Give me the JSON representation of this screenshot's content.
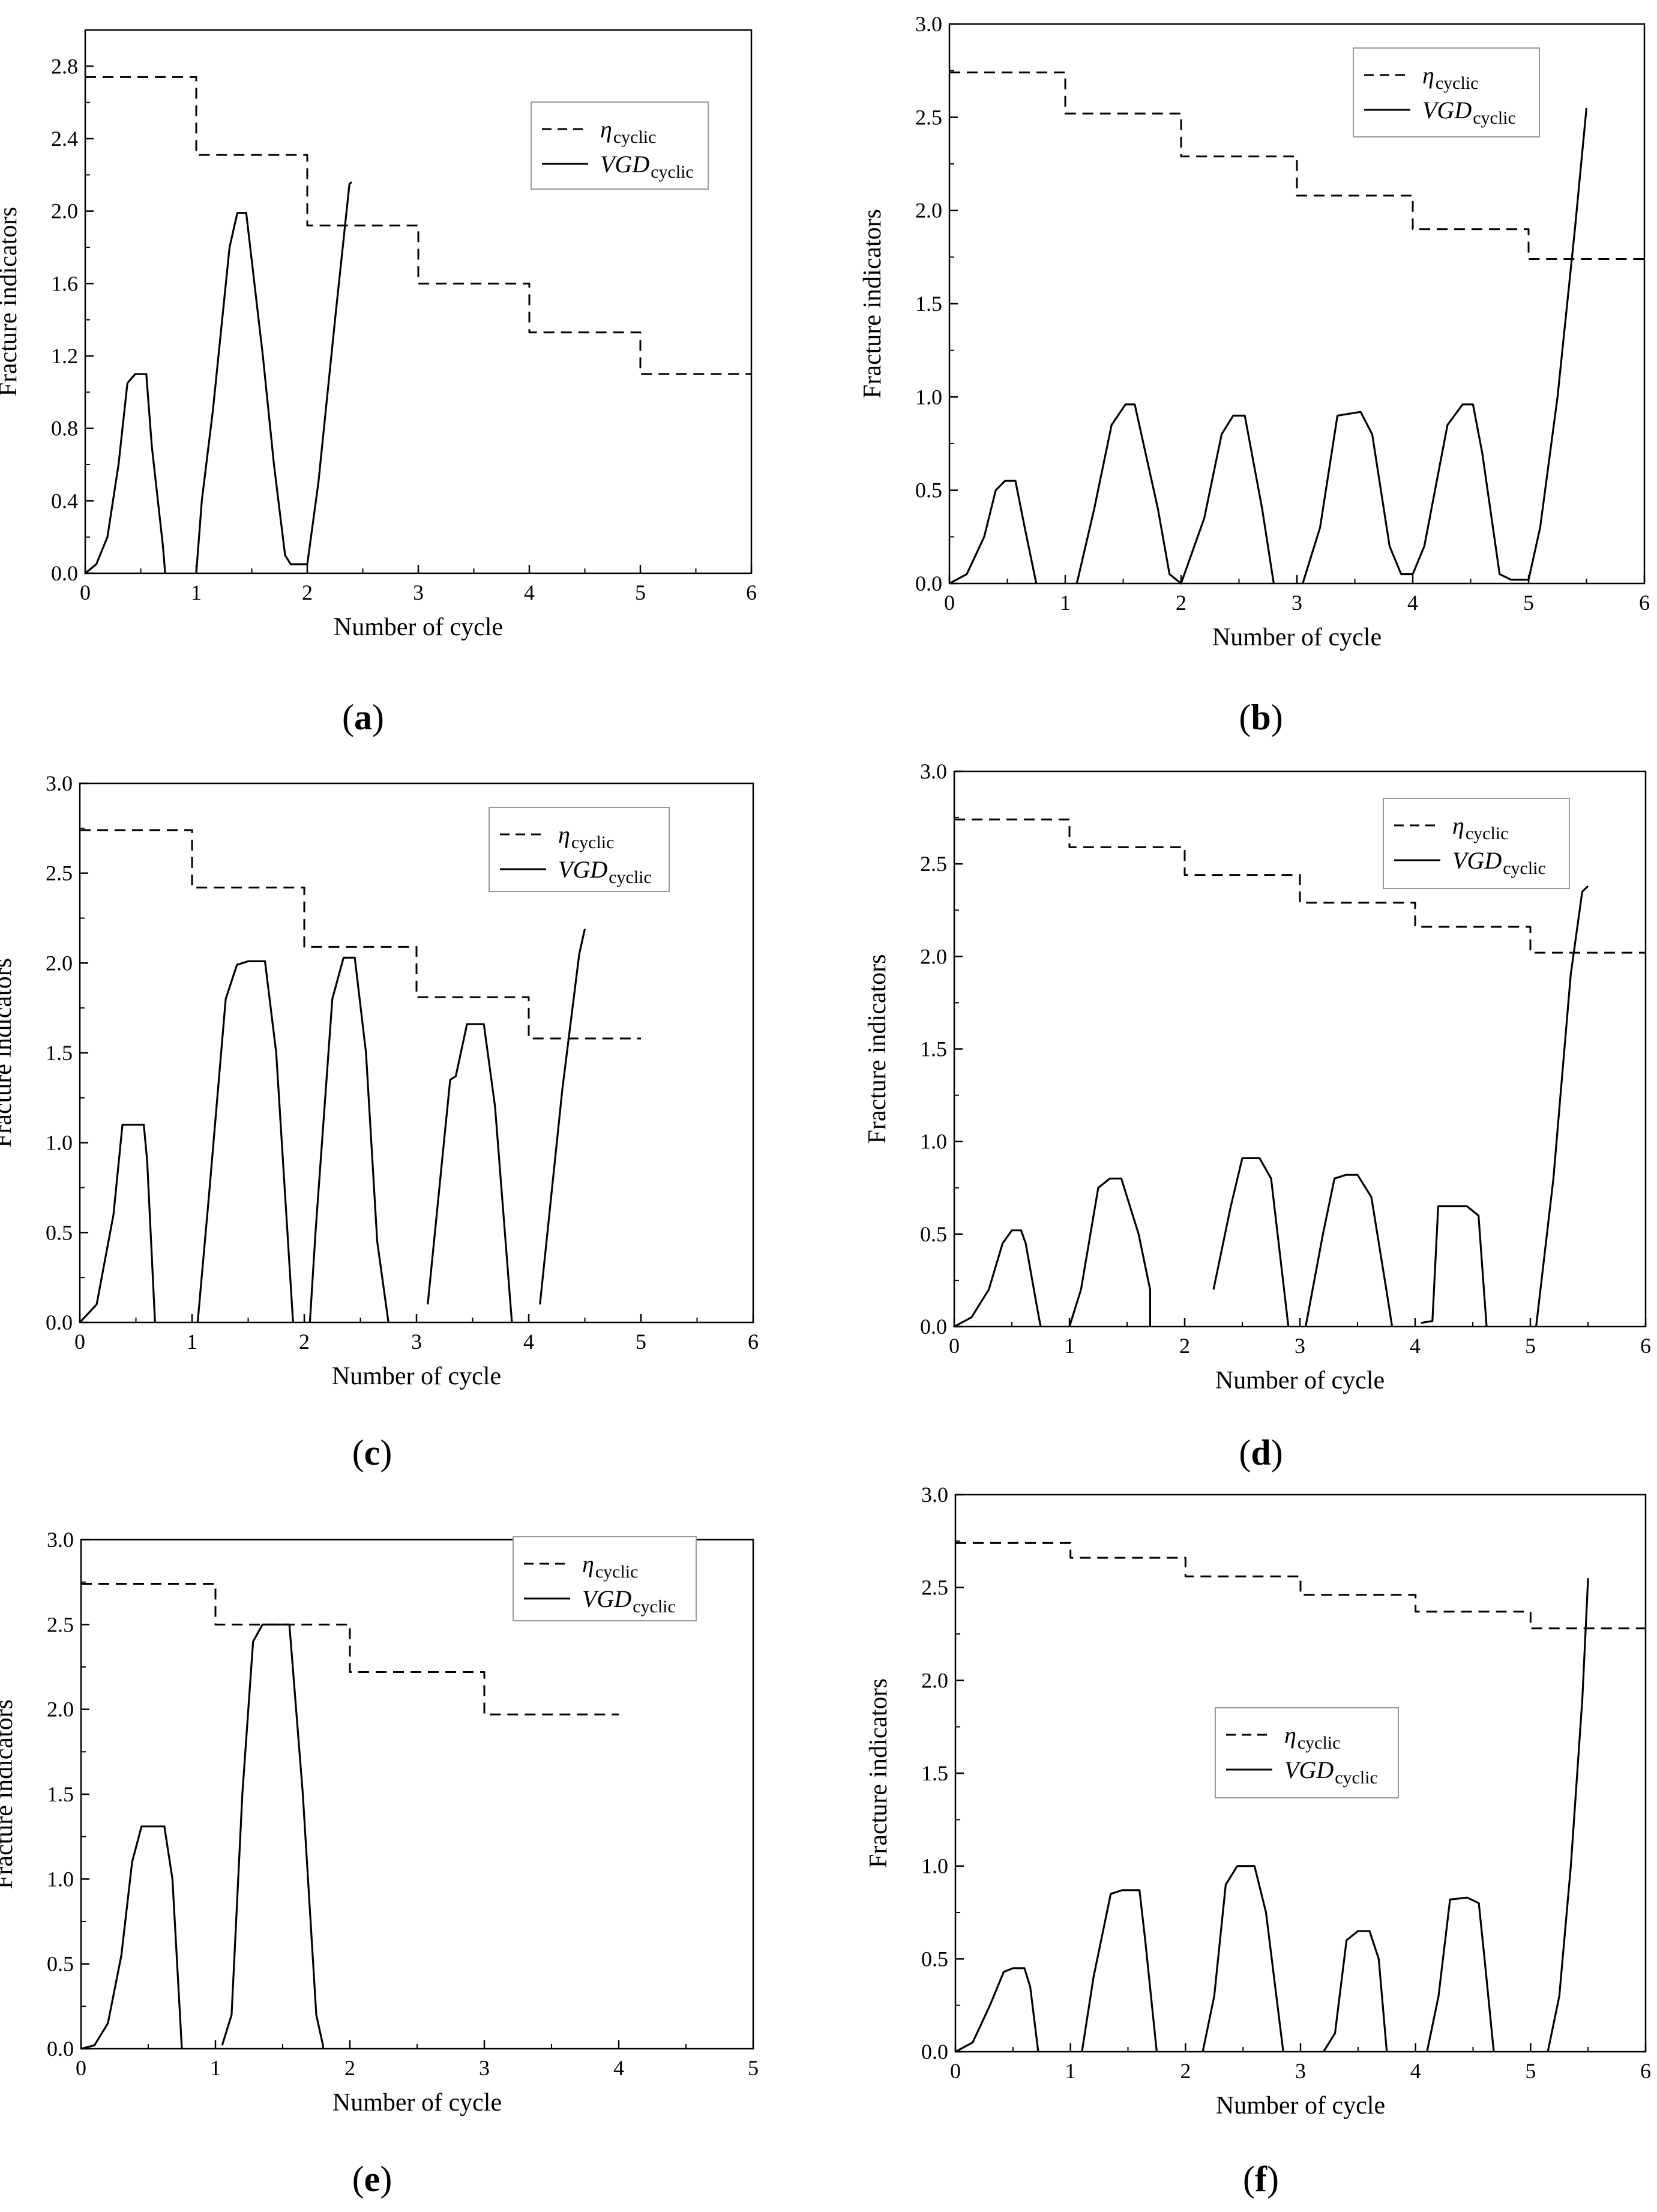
{
  "chart_data": [
    {
      "id": "a",
      "type": "line",
      "panel_label": "(a)",
      "panel_label_parts": [
        "(",
        "a",
        ")"
      ],
      "xlabel": "Number of cycle",
      "ylabel": "Fracture indicators",
      "xlim": [
        0,
        6
      ],
      "ylim": [
        0,
        3.0
      ],
      "xticks": [
        "0",
        "1",
        "2",
        "3",
        "4",
        "5",
        "6"
      ],
      "yticks": [
        "0.0",
        "0.4",
        "0.8",
        "1.2",
        "1.6",
        "2.0",
        "2.4",
        "2.8"
      ],
      "legend_position": "top-right",
      "legend": [
        {
          "symbol": "η",
          "subscript": "cyclic"
        },
        {
          "symbol": "VGD",
          "subscript": "cyclic"
        }
      ],
      "series": [
        {
          "name": "η_cyclic",
          "style": "dashed",
          "step": true,
          "x": [
            0,
            1,
            2,
            3,
            4,
            5,
            6
          ],
          "y": [
            2.74,
            2.31,
            1.92,
            1.6,
            1.33,
            1.1,
            1.1
          ]
        },
        {
          "name": "VGD_cyclic",
          "style": "solid",
          "x": [
            0,
            0.1,
            0.2,
            0.3,
            0.38,
            0.45,
            0.55,
            0.6,
            0.7,
            0.72,
            0.72,
            1.0,
            1.05,
            1.15,
            1.3,
            1.37,
            1.45,
            1.6,
            1.7,
            1.8,
            1.85,
            2.0,
            2.1,
            2.25,
            2.38,
            2.4
          ],
          "y": [
            0,
            0.05,
            0.2,
            0.6,
            1.05,
            1.1,
            1.1,
            0.7,
            0.15,
            0,
            null,
            0,
            0.4,
            0.9,
            1.8,
            1.99,
            1.99,
            1.2,
            0.6,
            0.1,
            0.05,
            0.05,
            0.5,
            1.4,
            2.15,
            2.16
          ]
        }
      ]
    },
    {
      "id": "b",
      "type": "line",
      "panel_label": "(b)",
      "panel_label_parts": [
        "(",
        "b",
        ")"
      ],
      "xlabel": "Number of cycle",
      "ylabel": "Fracture indicators",
      "xlim": [
        0,
        6
      ],
      "ylim": [
        0,
        3.0
      ],
      "xticks": [
        "0",
        "1",
        "2",
        "3",
        "4",
        "5",
        "6"
      ],
      "yticks": [
        "0.0",
        "0.5",
        "1.0",
        "1.5",
        "2.0",
        "2.5",
        "3.0"
      ],
      "legend_position": "top-right",
      "legend": [
        {
          "symbol": "η",
          "subscript": "cyclic"
        },
        {
          "symbol": "VGD",
          "subscript": "cyclic"
        }
      ],
      "series": [
        {
          "name": "η_cyclic",
          "style": "dashed",
          "step": true,
          "x": [
            0,
            1,
            2,
            3,
            4,
            5,
            6
          ],
          "y": [
            2.74,
            2.52,
            2.29,
            2.08,
            1.9,
            1.74,
            1.74
          ]
        },
        {
          "name": "VGD_cyclic",
          "style": "solid",
          "x": [
            0,
            0.15,
            0.3,
            0.4,
            0.48,
            0.57,
            0.65,
            0.75,
            0.75,
            1.1,
            1.25,
            1.4,
            1.52,
            1.6,
            1.8,
            1.9,
            2.0,
            2.0,
            2.2,
            2.35,
            2.45,
            2.55,
            2.7,
            2.8,
            2.8,
            3.05,
            3.2,
            3.35,
            3.55,
            3.65,
            3.8,
            3.9,
            4.0,
            4.1,
            4.3,
            4.43,
            4.52,
            4.6,
            4.75,
            4.85,
            5.0,
            5.1,
            5.25,
            5.4,
            5.5
          ],
          "y": [
            0,
            0.05,
            0.25,
            0.5,
            0.55,
            0.55,
            0.3,
            0,
            null,
            0,
            0.4,
            0.85,
            0.96,
            0.96,
            0.4,
            0.05,
            0,
            0,
            0.35,
            0.8,
            0.9,
            0.9,
            0.4,
            0,
            null,
            0,
            0.3,
            0.9,
            0.92,
            0.8,
            0.2,
            0.05,
            0.05,
            0.2,
            0.85,
            0.96,
            0.96,
            0.7,
            0.05,
            0.02,
            0.02,
            0.3,
            1.0,
            1.9,
            2.55
          ]
        }
      ]
    },
    {
      "id": "c",
      "type": "line",
      "panel_label": "(c)",
      "panel_label_parts": [
        "(",
        "c",
        ")"
      ],
      "xlabel": "Number of cycle",
      "ylabel": "Fracture indicators",
      "xlim": [
        0,
        6
      ],
      "ylim": [
        0,
        3.0
      ],
      "xticks": [
        "0",
        "1",
        "2",
        "3",
        "4",
        "5",
        "6"
      ],
      "yticks": [
        "0.0",
        "0.5",
        "1.0",
        "1.5",
        "2.0",
        "2.5",
        "3.0"
      ],
      "legend_position": "top-right",
      "legend": [
        {
          "symbol": "η",
          "subscript": "cyclic"
        },
        {
          "symbol": "VGD",
          "subscript": "cyclic"
        }
      ],
      "series": [
        {
          "name": "η_cyclic",
          "style": "dashed",
          "step": true,
          "x": [
            0,
            1,
            2,
            3,
            4,
            5
          ],
          "y": [
            2.74,
            2.42,
            2.09,
            1.81,
            1.58,
            1.58
          ]
        },
        {
          "name": "VGD_cyclic",
          "style": "solid",
          "x": [
            0,
            0.15,
            0.3,
            0.38,
            0.45,
            0.57,
            0.6,
            0.67,
            0.67,
            1.05,
            1.15,
            1.3,
            1.4,
            1.5,
            1.65,
            1.75,
            1.9,
            1.9,
            2.05,
            2.1,
            2.25,
            2.35,
            2.45,
            2.55,
            2.65,
            2.75,
            2.75,
            3.1,
            3.3,
            3.35,
            3.45,
            3.6,
            3.7,
            3.85,
            3.85,
            4.1,
            4.2,
            4.3,
            4.45,
            4.5
          ],
          "y": [
            0,
            0.1,
            0.6,
            1.1,
            1.1,
            1.1,
            0.9,
            0,
            null,
            0,
            0.7,
            1.8,
            1.99,
            2.01,
            2.01,
            1.5,
            0,
            null,
            0,
            0.5,
            1.8,
            2.03,
            2.03,
            1.5,
            0.45,
            0,
            null,
            0.1,
            1.35,
            1.37,
            1.66,
            1.66,
            1.2,
            0,
            null,
            0.1,
            0.7,
            1.3,
            2.05,
            2.19
          ]
        }
      ]
    },
    {
      "id": "d",
      "type": "line",
      "panel_label": "(d)",
      "panel_label_parts": [
        "(",
        "d",
        ")"
      ],
      "xlabel": "Number of cycle",
      "ylabel": "Fracture indicators",
      "xlim": [
        0,
        6
      ],
      "ylim": [
        0,
        3.0
      ],
      "xticks": [
        "0",
        "1",
        "2",
        "3",
        "4",
        "5",
        "6"
      ],
      "yticks": [
        "0.0",
        "0.5",
        "1.0",
        "1.5",
        "2.0",
        "2.5",
        "3.0"
      ],
      "legend_position": "top-right",
      "legend": [
        {
          "symbol": "η",
          "subscript": "cyclic"
        },
        {
          "symbol": "VGD",
          "subscript": "cyclic"
        }
      ],
      "series": [
        {
          "name": "η_cyclic",
          "style": "dashed",
          "step": true,
          "x": [
            0,
            1,
            2,
            3,
            4,
            5,
            6
          ],
          "y": [
            2.74,
            2.59,
            2.44,
            2.29,
            2.16,
            2.02,
            2.02
          ]
        },
        {
          "name": "VGD_cyclic",
          "style": "solid",
          "x": [
            0,
            0.15,
            0.3,
            0.42,
            0.5,
            0.58,
            0.62,
            0.72,
            0.75,
            0.75,
            1.0,
            1.1,
            1.25,
            1.35,
            1.45,
            1.6,
            1.7,
            1.7,
            2.05,
            2.25,
            2.4,
            2.5,
            2.65,
            2.75,
            2.9,
            2.9,
            3.05,
            3.2,
            3.3,
            3.4,
            3.5,
            3.62,
            3.75,
            3.8,
            3.8,
            4.05,
            4.15,
            4.2,
            4.3,
            4.45,
            4.55,
            4.62,
            4.62,
            5.05,
            5.2,
            5.35,
            5.45,
            5.5
          ],
          "y": [
            0,
            0.05,
            0.2,
            0.45,
            0.52,
            0.52,
            0.45,
            0.1,
            0,
            null,
            0,
            0.2,
            0.75,
            0.8,
            0.8,
            0.5,
            0.2,
            0,
            null,
            0.2,
            0.65,
            0.91,
            0.91,
            0.8,
            0,
            null,
            0,
            0.5,
            0.8,
            0.82,
            0.82,
            0.7,
            0.2,
            0,
            null,
            0.02,
            0.03,
            0.65,
            0.65,
            0.65,
            0.6,
            0,
            null,
            0,
            0.8,
            1.9,
            2.35,
            2.38
          ]
        }
      ]
    },
    {
      "id": "e",
      "type": "line",
      "panel_label": "(e)",
      "panel_label_parts": [
        "(",
        "e",
        ")"
      ],
      "xlabel": "Number of cycle",
      "ylabel": "Fracture indicators",
      "xlim": [
        0,
        5
      ],
      "ylim": [
        0,
        3.0
      ],
      "xticks": [
        "0",
        "1",
        "2",
        "3",
        "4",
        "5"
      ],
      "yticks": [
        "0.0",
        "0.5",
        "1.0",
        "1.5",
        "2.0",
        "2.5",
        "3.0"
      ],
      "legend_position": "top-right",
      "legend": [
        {
          "symbol": "η",
          "subscript": "cyclic"
        },
        {
          "symbol": "VGD",
          "subscript": "cyclic"
        }
      ],
      "series": [
        {
          "name": "η_cyclic",
          "style": "dashed",
          "step": true,
          "x": [
            0,
            1,
            2,
            3,
            4
          ],
          "y": [
            2.74,
            2.5,
            2.22,
            1.97,
            1.97
          ]
        },
        {
          "name": "VGD_cyclic",
          "style": "solid",
          "x": [
            0,
            0.1,
            0.2,
            0.3,
            0.38,
            0.45,
            0.62,
            0.68,
            0.75,
            0.75,
            1.05,
            1.12,
            1.2,
            1.28,
            1.35,
            1.55,
            1.65,
            1.75,
            1.8,
            1.8
          ],
          "y": [
            0,
            0.02,
            0.15,
            0.55,
            1.1,
            1.31,
            1.31,
            1.0,
            0,
            null,
            0.02,
            0.2,
            1.5,
            2.4,
            2.5,
            2.5,
            1.5,
            0.2,
            0.02,
            0
          ]
        }
      ]
    },
    {
      "id": "f",
      "type": "line",
      "panel_label": "(f)",
      "panel_label_parts": [
        "(",
        "f",
        ")"
      ],
      "xlabel": "Number of cycle",
      "ylabel": "Fracture indicators",
      "xlim": [
        0,
        6
      ],
      "ylim": [
        0,
        3.0
      ],
      "xticks": [
        "0",
        "1",
        "2",
        "3",
        "4",
        "5",
        "6"
      ],
      "yticks": [
        "0.0",
        "0.5",
        "1.0",
        "1.5",
        "2.0",
        "2.5",
        "3.0"
      ],
      "legend_position": "center-left",
      "legend": [
        {
          "symbol": "η",
          "subscript": "cyclic"
        },
        {
          "symbol": "VGD",
          "subscript": "cyclic"
        }
      ],
      "series": [
        {
          "name": "η_cyclic",
          "style": "dashed",
          "step": true,
          "x": [
            0,
            1,
            2,
            3,
            4,
            5,
            6
          ],
          "y": [
            2.74,
            2.66,
            2.56,
            2.46,
            2.37,
            2.28,
            2.28
          ]
        },
        {
          "name": "VGD_cyclic",
          "style": "solid",
          "x": [
            0,
            0.15,
            0.3,
            0.42,
            0.5,
            0.6,
            0.65,
            0.72,
            0.72,
            1.1,
            1.2,
            1.35,
            1.45,
            1.6,
            1.65,
            1.75,
            1.75,
            2.15,
            2.25,
            2.35,
            2.45,
            2.6,
            2.7,
            2.85,
            2.85,
            3.2,
            3.3,
            3.4,
            3.5,
            3.6,
            3.68,
            3.75,
            3.75,
            4.1,
            4.2,
            4.3,
            4.45,
            4.55,
            4.6,
            4.68,
            4.68,
            5.15,
            5.25,
            5.35,
            5.45,
            5.5
          ],
          "y": [
            0,
            0.05,
            0.25,
            0.43,
            0.45,
            0.45,
            0.35,
            0,
            null,
            0,
            0.4,
            0.85,
            0.87,
            0.87,
            0.6,
            0,
            null,
            0,
            0.3,
            0.9,
            1.0,
            1.0,
            0.75,
            0,
            null,
            0,
            0.1,
            0.6,
            0.65,
            0.65,
            0.5,
            0,
            null,
            0,
            0.3,
            0.82,
            0.83,
            0.8,
            0.5,
            0,
            null,
            0,
            0.3,
            1.0,
            1.9,
            2.55
          ]
        }
      ]
    }
  ]
}
